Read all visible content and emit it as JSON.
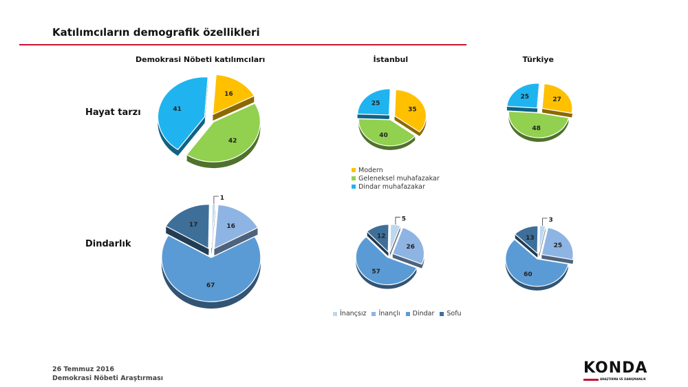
{
  "page": {
    "title": "Katılımcıların demografik özellikleri",
    "columns": [
      "Demokrasi Nöbeti katılımcıları",
      "İstanbul",
      "Türkiye"
    ],
    "rows": [
      "Hayat tarzı",
      "Dindarlık"
    ],
    "footer": {
      "date": "26 Temmuz 2016",
      "source": "Demokrasi Nöbeti Araştırması"
    },
    "logo": {
      "word": "KONDA",
      "tagline": "ARAŞTIRMA VE DANIŞMANLIK"
    }
  },
  "legends": {
    "lifestyle": [
      {
        "label": "Modern",
        "color": "#ffc000"
      },
      {
        "label": "Geleneksel muhafazakar",
        "color": "#92d050"
      },
      {
        "label": "Dindar muhafazakar",
        "color": "#1fb4f0"
      }
    ],
    "religiosity": [
      {
        "label": "İnançsız",
        "color": "#bdd7ee"
      },
      {
        "label": "İnançlı",
        "color": "#8eb4e3"
      },
      {
        "label": "Dindar",
        "color": "#5b9bd5"
      },
      {
        "label": "Sofu",
        "color": "#3e6f99"
      }
    ]
  },
  "chart_data": [
    {
      "type": "pie",
      "row": "Hayat tarzı",
      "column": "Demokrasi Nöbeti katılımcıları",
      "categories": [
        "Modern",
        "Geleneksel muhafazakar",
        "Dindar muhafazakar"
      ],
      "values": [
        16,
        42,
        41
      ]
    },
    {
      "type": "pie",
      "row": "Hayat tarzı",
      "column": "İstanbul",
      "categories": [
        "Modern",
        "Geleneksel muhafazakar",
        "Dindar muhafazakar"
      ],
      "values": [
        35,
        40,
        25
      ]
    },
    {
      "type": "pie",
      "row": "Hayat tarzı",
      "column": "Türkiye",
      "categories": [
        "Modern",
        "Geleneksel muhafazakar",
        "Dindar muhafazakar"
      ],
      "values": [
        27,
        48,
        25
      ]
    },
    {
      "type": "pie",
      "row": "Dindarlık",
      "column": "Demokrasi Nöbeti katılımcıları",
      "categories": [
        "İnançsız",
        "İnançlı",
        "Dindar",
        "Sofu"
      ],
      "values": [
        1,
        16,
        67,
        17
      ]
    },
    {
      "type": "pie",
      "row": "Dindarlık",
      "column": "İstanbul",
      "categories": [
        "İnançsız",
        "İnançlı",
        "Dindar",
        "Sofu"
      ],
      "values": [
        5,
        26,
        57,
        12
      ]
    },
    {
      "type": "pie",
      "row": "Dindarlık",
      "column": "Türkiye",
      "categories": [
        "İnançsız",
        "İnançlı",
        "Dindar",
        "Sofu"
      ],
      "values": [
        3,
        25,
        60,
        13
      ]
    }
  ]
}
